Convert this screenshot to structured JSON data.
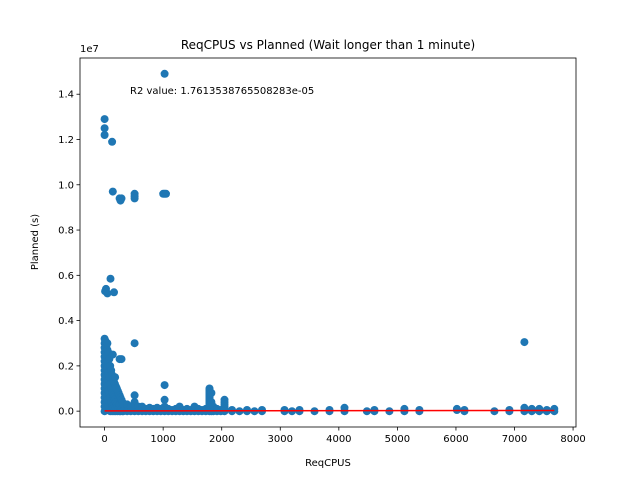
{
  "chart_data": {
    "type": "scatter",
    "title": "ReqCPUS vs Planned (Wait longer than 1 minute)",
    "xlabel": "ReqCPUS",
    "ylabel": "Planned (s)",
    "y_offset_label": "1e7",
    "annotation": "R2 value: 1.7613538765508283e-05",
    "xlim": [
      -420,
      8050
    ],
    "ylim": [
      -700000,
      15600000
    ],
    "x_ticks": [
      0,
      1000,
      2000,
      3000,
      4000,
      5000,
      6000,
      7000,
      8000
    ],
    "x_tick_labels": [
      "0",
      "1000",
      "2000",
      "3000",
      "4000",
      "5000",
      "6000",
      "7000",
      "8000"
    ],
    "y_ticks": [
      0,
      2000000,
      4000000,
      6000000,
      8000000,
      10000000,
      12000000,
      14000000
    ],
    "y_tick_labels": [
      "0.0",
      "0.2",
      "0.4",
      "0.6",
      "0.8",
      "1.0",
      "1.2",
      "1.4"
    ],
    "grid": false,
    "colors": {
      "points": "#1f77b4",
      "fit_line": "#ff0000"
    },
    "points": [
      [
        0,
        12900000
      ],
      [
        0,
        12500000
      ],
      [
        0,
        12200000
      ],
      [
        24,
        5400000
      ],
      [
        48,
        5200000
      ],
      [
        8,
        5300000
      ],
      [
        0,
        3200000
      ],
      [
        0,
        3000000
      ],
      [
        0,
        2800000
      ],
      [
        0,
        2600000
      ],
      [
        0,
        2400000
      ],
      [
        0,
        2200000
      ],
      [
        0,
        2000000
      ],
      [
        0,
        1800000
      ],
      [
        0,
        1600000
      ],
      [
        0,
        1400000
      ],
      [
        0,
        1200000
      ],
      [
        0,
        1000000
      ],
      [
        0,
        800000
      ],
      [
        0,
        600000
      ],
      [
        0,
        400000
      ],
      [
        0,
        200000
      ],
      [
        0,
        0
      ],
      [
        16,
        3100000
      ],
      [
        16,
        2500000
      ],
      [
        16,
        1500000
      ],
      [
        16,
        900000
      ],
      [
        16,
        300000
      ],
      [
        32,
        2900000
      ],
      [
        32,
        2100000
      ],
      [
        32,
        1300000
      ],
      [
        32,
        700000
      ],
      [
        32,
        100000
      ],
      [
        48,
        3000000
      ],
      [
        48,
        2700000
      ],
      [
        48,
        1900000
      ],
      [
        48,
        1100000
      ],
      [
        48,
        500000
      ],
      [
        64,
        2600000
      ],
      [
        64,
        1700000
      ],
      [
        64,
        900000
      ],
      [
        64,
        200000
      ],
      [
        80,
        2300000
      ],
      [
        80,
        1500000
      ],
      [
        80,
        800000
      ],
      [
        80,
        100000
      ],
      [
        96,
        2000000
      ],
      [
        96,
        1200000
      ],
      [
        96,
        600000
      ],
      [
        96,
        0
      ],
      [
        112,
        1800000
      ],
      [
        112,
        1000000
      ],
      [
        112,
        400000
      ],
      [
        128,
        1600000
      ],
      [
        128,
        800000
      ],
      [
        128,
        200000
      ],
      [
        128,
        0
      ],
      [
        144,
        1400000
      ],
      [
        144,
        700000
      ],
      [
        144,
        100000
      ],
      [
        160,
        1300000
      ],
      [
        160,
        600000
      ],
      [
        160,
        0
      ],
      [
        176,
        1200000
      ],
      [
        176,
        500000
      ],
      [
        176,
        50000
      ],
      [
        192,
        1100000
      ],
      [
        192,
        400000
      ],
      [
        192,
        0
      ],
      [
        208,
        1000000
      ],
      [
        208,
        300000
      ],
      [
        224,
        900000
      ],
      [
        224,
        200000
      ],
      [
        224,
        0
      ],
      [
        240,
        800000
      ],
      [
        240,
        100000
      ],
      [
        256,
        700000
      ],
      [
        256,
        300000
      ],
      [
        256,
        0
      ],
      [
        272,
        600000
      ],
      [
        272,
        0
      ],
      [
        288,
        500000
      ],
      [
        288,
        100000
      ],
      [
        304,
        400000
      ],
      [
        304,
        0
      ],
      [
        320,
        300000
      ],
      [
        320,
        0
      ],
      [
        100,
        5850000
      ],
      [
        128,
        11900000
      ],
      [
        140,
        9700000
      ],
      [
        160,
        5250000
      ],
      [
        140,
        2500000
      ],
      [
        180,
        1500000
      ],
      [
        200,
        1000000
      ],
      [
        256,
        9400000
      ],
      [
        272,
        9300000
      ],
      [
        288,
        9400000
      ],
      [
        256,
        2300000
      ],
      [
        288,
        2300000
      ],
      [
        512,
        9600000
      ],
      [
        512,
        9500000
      ],
      [
        512,
        9400000
      ],
      [
        512,
        3000000
      ],
      [
        512,
        700000
      ],
      [
        512,
        400000
      ],
      [
        512,
        200000
      ],
      [
        512,
        0
      ],
      [
        1024,
        14900000
      ],
      [
        1024,
        9600000
      ],
      [
        1000,
        9600000
      ],
      [
        1048,
        9600000
      ],
      [
        1024,
        1150000
      ],
      [
        1024,
        500000
      ],
      [
        1024,
        200000
      ],
      [
        1024,
        0
      ],
      [
        384,
        300000
      ],
      [
        384,
        0
      ],
      [
        448,
        200000
      ],
      [
        448,
        0
      ],
      [
        576,
        200000
      ],
      [
        576,
        0
      ],
      [
        640,
        200000
      ],
      [
        640,
        0
      ],
      [
        704,
        100000
      ],
      [
        704,
        0
      ],
      [
        768,
        150000
      ],
      [
        768,
        0
      ],
      [
        832,
        100000
      ],
      [
        832,
        0
      ],
      [
        896,
        150000
      ],
      [
        896,
        0
      ],
      [
        960,
        100000
      ],
      [
        960,
        0
      ],
      [
        1088,
        100000
      ],
      [
        1088,
        0
      ],
      [
        1152,
        50000
      ],
      [
        1152,
        0
      ],
      [
        1216,
        100000
      ],
      [
        1216,
        0
      ],
      [
        1280,
        200000
      ],
      [
        1280,
        0
      ],
      [
        1344,
        50000
      ],
      [
        1344,
        0
      ],
      [
        1408,
        100000
      ],
      [
        1408,
        0
      ],
      [
        1472,
        50000
      ],
      [
        1472,
        0
      ],
      [
        1536,
        200000
      ],
      [
        1536,
        0
      ],
      [
        1600,
        100000
      ],
      [
        1600,
        0
      ],
      [
        1664,
        50000
      ],
      [
        1664,
        0
      ],
      [
        1728,
        100000
      ],
      [
        1728,
        0
      ],
      [
        1792,
        1000000
      ],
      [
        1792,
        950000
      ],
      [
        1792,
        900000
      ],
      [
        1792,
        850000
      ],
      [
        1792,
        800000
      ],
      [
        1792,
        750000
      ],
      [
        1792,
        700000
      ],
      [
        1792,
        650000
      ],
      [
        1792,
        600000
      ],
      [
        1792,
        550000
      ],
      [
        1792,
        500000
      ],
      [
        1792,
        450000
      ],
      [
        1792,
        400000
      ],
      [
        1792,
        350000
      ],
      [
        1792,
        300000
      ],
      [
        1792,
        250000
      ],
      [
        1792,
        200000
      ],
      [
        1792,
        150000
      ],
      [
        1792,
        100000
      ],
      [
        1792,
        50000
      ],
      [
        1792,
        0
      ],
      [
        1824,
        800000
      ],
      [
        1824,
        400000
      ],
      [
        1824,
        0
      ],
      [
        1856,
        200000
      ],
      [
        1856,
        0
      ],
      [
        1920,
        100000
      ],
      [
        1920,
        0
      ],
      [
        1984,
        50000
      ],
      [
        1984,
        0
      ],
      [
        2048,
        500000
      ],
      [
        2048,
        400000
      ],
      [
        2048,
        300000
      ],
      [
        2048,
        200000
      ],
      [
        2048,
        100000
      ],
      [
        2048,
        0
      ],
      [
        2176,
        50000
      ],
      [
        2176,
        0
      ],
      [
        2304,
        0
      ],
      [
        2432,
        50000
      ],
      [
        2432,
        0
      ],
      [
        2560,
        0
      ],
      [
        2688,
        50000
      ],
      [
        2688,
        0
      ],
      [
        3072,
        50000
      ],
      [
        3072,
        0
      ],
      [
        3200,
        0
      ],
      [
        3328,
        50000
      ],
      [
        3328,
        0
      ],
      [
        3584,
        0
      ],
      [
        3840,
        50000
      ],
      [
        3840,
        0
      ],
      [
        4096,
        150000
      ],
      [
        4096,
        0
      ],
      [
        4480,
        0
      ],
      [
        4608,
        50000
      ],
      [
        4608,
        0
      ],
      [
        4864,
        0
      ],
      [
        5120,
        100000
      ],
      [
        5120,
        0
      ],
      [
        5376,
        50000
      ],
      [
        5376,
        0
      ],
      [
        6016,
        100000
      ],
      [
        6016,
        50000
      ],
      [
        6144,
        50000
      ],
      [
        6144,
        0
      ],
      [
        6656,
        0
      ],
      [
        6912,
        0
      ],
      [
        6912,
        50000
      ],
      [
        7168,
        3050000
      ],
      [
        7168,
        150000
      ],
      [
        7168,
        0
      ],
      [
        7296,
        100000
      ],
      [
        7296,
        0
      ],
      [
        7424,
        100000
      ],
      [
        7424,
        0
      ],
      [
        7552,
        50000
      ],
      [
        7552,
        0
      ],
      [
        7680,
        100000
      ],
      [
        7680,
        0
      ]
    ],
    "fit_line": {
      "x": [
        0,
        7680
      ],
      "y": [
        10000,
        30000
      ]
    }
  }
}
